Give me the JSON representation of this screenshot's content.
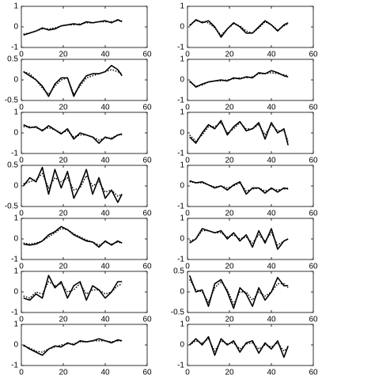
{
  "chart_data": [
    {
      "type": "line",
      "x": [
        1,
        4,
        7,
        10,
        13,
        16,
        19,
        22,
        25,
        28,
        31,
        34,
        37,
        40,
        43,
        46,
        48
      ],
      "xlim": [
        0,
        60
      ],
      "xticks": [
        0,
        20,
        40,
        60
      ],
      "ylim": [
        -1,
        1
      ],
      "yticks": [
        -1,
        0,
        1
      ],
      "series": [
        {
          "color": "#000000",
          "dash": "solid",
          "values": [
            -0.4,
            -0.3,
            -0.2,
            -0.05,
            -0.15,
            -0.1,
            0.05,
            0.1,
            0.15,
            0.1,
            0.25,
            0.2,
            0.25,
            0.3,
            0.2,
            0.35,
            0.25
          ]
        },
        {
          "color": "#000000",
          "dash": "dotted",
          "values": [
            -0.35,
            -0.3,
            -0.2,
            -0.1,
            -0.1,
            -0.05,
            0.05,
            0.1,
            0.1,
            0.15,
            0.2,
            0.2,
            0.25,
            0.25,
            0.25,
            0.3,
            0.3
          ]
        }
      ]
    },
    {
      "type": "line",
      "x": [
        1,
        4,
        7,
        10,
        13,
        16,
        19,
        22,
        25,
        28,
        31,
        34,
        37,
        40,
        43,
        46,
        48
      ],
      "xlim": [
        0,
        60
      ],
      "xticks": [
        0,
        20,
        40,
        60
      ],
      "ylim": [
        -1,
        1
      ],
      "yticks": [
        -1,
        0,
        1
      ],
      "series": [
        {
          "color": "#000000",
          "dash": "solid",
          "values": [
            0.05,
            0.35,
            0.2,
            0.3,
            0,
            -0.5,
            -0.1,
            0.2,
            0,
            -0.3,
            -0.3,
            0,
            0.3,
            0.1,
            -0.2,
            0.1,
            0.2
          ]
        },
        {
          "color": "#000000",
          "dash": "dotted",
          "values": [
            0.1,
            0.3,
            0.25,
            0.2,
            -0.05,
            -0.4,
            -0.1,
            0.15,
            0.05,
            -0.2,
            -0.3,
            -0.05,
            0.25,
            0.1,
            -0.15,
            0.05,
            0.15
          ]
        }
      ]
    },
    {
      "type": "line",
      "x": [
        1,
        4,
        7,
        10,
        13,
        16,
        19,
        22,
        25,
        28,
        31,
        34,
        37,
        40,
        43,
        46,
        48
      ],
      "xlim": [
        0,
        60
      ],
      "xticks": [
        0,
        20,
        40,
        60
      ],
      "ylim": [
        -0.5,
        0.5
      ],
      "yticks": [
        -0.5,
        0,
        0.5
      ],
      "series": [
        {
          "color": "#000000",
          "dash": "solid",
          "values": [
            0.2,
            0.1,
            0,
            -0.15,
            -0.4,
            -0.1,
            0.05,
            0.05,
            -0.4,
            -0.1,
            0.1,
            0.15,
            0.15,
            0.2,
            0.35,
            0.25,
            0.1
          ]
        },
        {
          "color": "#000000",
          "dash": "dotted",
          "values": [
            0.2,
            0.15,
            0,
            -0.2,
            -0.35,
            -0.15,
            0,
            0.05,
            -0.35,
            -0.15,
            0.05,
            0.1,
            0.15,
            0.2,
            0.25,
            0.2,
            0.15
          ]
        }
      ]
    },
    {
      "type": "line",
      "x": [
        1,
        4,
        7,
        10,
        13,
        16,
        19,
        22,
        25,
        28,
        31,
        34,
        37,
        40,
        43,
        46,
        48
      ],
      "xlim": [
        0,
        60
      ],
      "xticks": [
        0,
        20,
        40,
        60
      ],
      "ylim": [
        -1,
        1
      ],
      "yticks": [
        -1,
        0,
        1
      ],
      "series": [
        {
          "color": "#000000",
          "dash": "solid",
          "values": [
            -0.05,
            -0.35,
            -0.2,
            -0.1,
            -0.05,
            0,
            -0.05,
            0.1,
            0.05,
            0.15,
            0.1,
            0.35,
            0.3,
            0.45,
            0.35,
            0.2,
            0.15
          ]
        },
        {
          "color": "#000000",
          "dash": "dotted",
          "values": [
            -0.1,
            -0.3,
            -0.25,
            -0.1,
            -0.05,
            -0.05,
            0,
            0.05,
            0.1,
            0.1,
            0.15,
            0.3,
            0.3,
            0.35,
            0.3,
            0.25,
            0.2
          ]
        }
      ]
    },
    {
      "type": "line",
      "x": [
        1,
        4,
        7,
        10,
        13,
        16,
        19,
        22,
        25,
        28,
        31,
        34,
        37,
        40,
        43,
        46,
        48
      ],
      "xlim": [
        0,
        60
      ],
      "xticks": [
        0,
        20,
        40,
        60
      ],
      "ylim": [
        -1,
        1
      ],
      "yticks": [
        -1,
        0,
        1
      ],
      "series": [
        {
          "color": "#000000",
          "dash": "solid",
          "values": [
            0.4,
            0.25,
            0.3,
            0.1,
            0.35,
            0.15,
            -0.05,
            0.2,
            -0.3,
            0,
            -0.1,
            -0.2,
            -0.5,
            -0.2,
            -0.3,
            -0.1,
            -0.05
          ]
        },
        {
          "color": "#000000",
          "dash": "dotted",
          "values": [
            0.3,
            0.3,
            0.25,
            0.15,
            0.25,
            0.15,
            0,
            0.1,
            -0.2,
            -0.1,
            -0.1,
            -0.2,
            -0.35,
            -0.25,
            -0.25,
            -0.1,
            -0.1
          ]
        }
      ]
    },
    {
      "type": "line",
      "x": [
        1,
        4,
        7,
        10,
        13,
        16,
        19,
        22,
        25,
        28,
        31,
        34,
        37,
        40,
        43,
        46,
        48
      ],
      "xlim": [
        0,
        60
      ],
      "xticks": [
        0,
        20,
        40,
        60
      ],
      "ylim": [
        -1,
        1
      ],
      "yticks": [
        -1,
        0,
        1
      ],
      "series": [
        {
          "color": "#000000",
          "dash": "solid",
          "values": [
            -0.2,
            -0.5,
            0,
            0.4,
            0.2,
            0.6,
            -0.1,
            0.3,
            0.55,
            0.1,
            0.2,
            0.5,
            -0.3,
            0.5,
            0,
            0.2,
            -0.6
          ]
        },
        {
          "color": "#000000",
          "dash": "dotted",
          "values": [
            -0.1,
            -0.4,
            -0.1,
            0.3,
            0.3,
            0.5,
            0,
            0.2,
            0.5,
            0.2,
            0.2,
            0.4,
            -0.1,
            0.4,
            0.1,
            0.1,
            -0.4
          ]
        }
      ]
    },
    {
      "type": "line",
      "x": [
        1,
        4,
        7,
        10,
        13,
        16,
        19,
        22,
        25,
        28,
        31,
        34,
        37,
        40,
        43,
        46,
        48
      ],
      "xlim": [
        0,
        60
      ],
      "xticks": [
        0,
        20,
        40,
        60
      ],
      "ylim": [
        -0.5,
        0.5
      ],
      "yticks": [
        -0.5,
        0,
        0.5
      ],
      "series": [
        {
          "color": "#000000",
          "dash": "solid",
          "values": [
            0,
            0.2,
            0.1,
            0.45,
            -0.2,
            0.4,
            -0.05,
            0.35,
            -0.3,
            0,
            0.4,
            -0.2,
            0.2,
            -0.3,
            -0.1,
            -0.4,
            -0.2
          ]
        },
        {
          "color": "#000000",
          "dash": "dotted",
          "values": [
            0.05,
            0.1,
            0.15,
            0.3,
            -0.05,
            0.2,
            0.1,
            0.2,
            -0.1,
            -0.05,
            0.25,
            0,
            0.1,
            -0.15,
            -0.1,
            -0.25,
            -0.2
          ]
        }
      ]
    },
    {
      "type": "line",
      "x": [
        1,
        4,
        7,
        10,
        13,
        16,
        19,
        22,
        25,
        28,
        31,
        34,
        37,
        40,
        43,
        46,
        48
      ],
      "xlim": [
        0,
        60
      ],
      "xticks": [
        0,
        20,
        40,
        60
      ],
      "ylim": [
        -1,
        1
      ],
      "yticks": [
        -1,
        0,
        1
      ],
      "series": [
        {
          "color": "#000000",
          "dash": "solid",
          "values": [
            0.25,
            0.15,
            0.2,
            0.05,
            -0.1,
            0,
            -0.2,
            0.05,
            0.2,
            -0.4,
            -0.1,
            -0.1,
            -0.35,
            -0.1,
            -0.3,
            -0.1,
            -0.15
          ]
        },
        {
          "color": "#000000",
          "dash": "dotted",
          "values": [
            0.2,
            0.15,
            0.15,
            0.05,
            -0.05,
            0,
            -0.1,
            0,
            0.15,
            -0.25,
            -0.15,
            -0.1,
            -0.25,
            -0.15,
            -0.2,
            -0.15,
            -0.1
          ]
        }
      ]
    },
    {
      "type": "line",
      "x": [
        1,
        4,
        7,
        10,
        13,
        16,
        19,
        22,
        25,
        28,
        31,
        34,
        37,
        40,
        43,
        46,
        48
      ],
      "xlim": [
        0,
        60
      ],
      "xticks": [
        0,
        20,
        40,
        60
      ],
      "ylim": [
        -1,
        1
      ],
      "yticks": [
        -1,
        0,
        1
      ],
      "series": [
        {
          "color": "#000000",
          "dash": "solid",
          "values": [
            -0.25,
            -0.3,
            -0.25,
            -0.1,
            0.2,
            0.35,
            0.6,
            0.45,
            0.2,
            0.05,
            -0.1,
            -0.15,
            -0.4,
            -0.1,
            -0.3,
            -0.1,
            -0.2
          ]
        },
        {
          "color": "#000000",
          "dash": "dotted",
          "values": [
            -0.2,
            -0.25,
            -0.2,
            -0.1,
            0.1,
            0.3,
            0.5,
            0.45,
            0.25,
            0.1,
            -0.05,
            -0.15,
            -0.3,
            -0.15,
            -0.25,
            -0.15,
            -0.2
          ]
        }
      ]
    },
    {
      "type": "line",
      "x": [
        1,
        4,
        7,
        10,
        13,
        16,
        19,
        22,
        25,
        28,
        31,
        34,
        37,
        40,
        43,
        46,
        48
      ],
      "xlim": [
        0,
        60
      ],
      "xticks": [
        0,
        20,
        40,
        60
      ],
      "ylim": [
        -1,
        1
      ],
      "yticks": [
        -1,
        0,
        1
      ],
      "series": [
        {
          "color": "#000000",
          "dash": "solid",
          "values": [
            -0.2,
            0,
            0.5,
            0.4,
            0.3,
            0.4,
            0,
            0.3,
            -0.1,
            0.2,
            -0.4,
            0.4,
            -0.2,
            0.5,
            -0.5,
            -0.1,
            0
          ]
        },
        {
          "color": "#000000",
          "dash": "dotted",
          "values": [
            -0.1,
            0,
            0.4,
            0.4,
            0.3,
            0.3,
            0.1,
            0.2,
            0,
            0.1,
            -0.2,
            0.2,
            -0.1,
            0.3,
            -0.3,
            -0.1,
            0
          ]
        }
      ]
    },
    {
      "type": "line",
      "x": [
        1,
        4,
        7,
        10,
        13,
        16,
        19,
        22,
        25,
        28,
        31,
        34,
        37,
        40,
        43,
        46,
        48
      ],
      "xlim": [
        0,
        60
      ],
      "xticks": [
        0,
        20,
        40,
        60
      ],
      "ylim": [
        -1,
        1
      ],
      "yticks": [
        -1,
        0,
        1
      ],
      "series": [
        {
          "color": "#000000",
          "dash": "solid",
          "values": [
            -0.3,
            -0.4,
            -0.1,
            -0.3,
            0.8,
            0.2,
            0.5,
            -0.3,
            0.3,
            0.5,
            -0.4,
            0.3,
            0.1,
            -0.3,
            0,
            0.5,
            0.5
          ]
        },
        {
          "color": "#000000",
          "dash": "dotted",
          "values": [
            -0.2,
            -0.3,
            0,
            -0.1,
            0.5,
            0.3,
            0.4,
            0,
            0.1,
            0.4,
            -0.1,
            0.1,
            0.1,
            -0.1,
            0,
            0.3,
            0.4
          ]
        }
      ]
    },
    {
      "type": "line",
      "x": [
        1,
        4,
        7,
        10,
        13,
        16,
        19,
        22,
        25,
        28,
        31,
        34,
        37,
        40,
        43,
        46,
        48
      ],
      "xlim": [
        0,
        60
      ],
      "xticks": [
        0,
        20,
        40,
        60
      ],
      "ylim": [
        -0.5,
        0.5
      ],
      "yticks": [
        -0.5,
        0,
        0.5
      ],
      "series": [
        {
          "color": "#000000",
          "dash": "solid",
          "values": [
            0.4,
            0,
            0.05,
            -0.35,
            0.2,
            0.3,
            0,
            -0.4,
            0.1,
            -0.05,
            -0.35,
            0.1,
            -0.2,
            0,
            0.35,
            0.15,
            0.15
          ]
        },
        {
          "color": "#000000",
          "dash": "dotted",
          "values": [
            0.3,
            0.05,
            0,
            -0.25,
            0.1,
            0.25,
            0.05,
            -0.3,
            0,
            0,
            -0.2,
            0,
            -0.1,
            0,
            0.2,
            0.2,
            0.1
          ]
        }
      ]
    },
    {
      "type": "line",
      "x": [
        1,
        4,
        7,
        10,
        13,
        16,
        19,
        22,
        25,
        28,
        31,
        34,
        37,
        40,
        43,
        46,
        48
      ],
      "xlim": [
        0,
        60
      ],
      "xticks": [
        0,
        20,
        40,
        60
      ],
      "ylim": [
        -1,
        1
      ],
      "yticks": [
        -1,
        0,
        1
      ],
      "series": [
        {
          "color": "#000000",
          "dash": "solid",
          "values": [
            0,
            -0.2,
            -0.35,
            -0.5,
            -0.2,
            -0.05,
            -0.1,
            0.1,
            0,
            0.2,
            0.15,
            0.2,
            0.3,
            0.2,
            0.1,
            0.25,
            0.2
          ]
        },
        {
          "color": "#000000",
          "dash": "dotted",
          "values": [
            -0.05,
            -0.15,
            -0.3,
            -0.35,
            -0.2,
            -0.1,
            0,
            0.05,
            0.05,
            0.15,
            0.15,
            0.2,
            0.2,
            0.2,
            0.15,
            0.2,
            0.2
          ]
        }
      ]
    },
    {
      "type": "line",
      "x": [
        1,
        4,
        7,
        10,
        13,
        16,
        19,
        22,
        25,
        28,
        31,
        34,
        37,
        40,
        43,
        46,
        48
      ],
      "xlim": [
        0,
        60
      ],
      "xticks": [
        0,
        20,
        40,
        60
      ],
      "ylim": [
        -1,
        1
      ],
      "yticks": [
        -1,
        0,
        1
      ],
      "series": [
        {
          "color": "#000000",
          "dash": "solid",
          "values": [
            0,
            0.3,
            0,
            0.4,
            -0.5,
            0.3,
            0,
            0.2,
            -0.35,
            0.1,
            0.2,
            -0.4,
            0.1,
            -0.2,
            0.2,
            -0.6,
            -0.05
          ]
        },
        {
          "color": "#000000",
          "dash": "dotted",
          "values": [
            0,
            0.2,
            0.1,
            0.3,
            -0.3,
            0.2,
            0.05,
            0.1,
            -0.2,
            0.05,
            0.1,
            -0.2,
            0,
            -0.1,
            0.1,
            -0.3,
            -0.1
          ]
        }
      ]
    }
  ]
}
